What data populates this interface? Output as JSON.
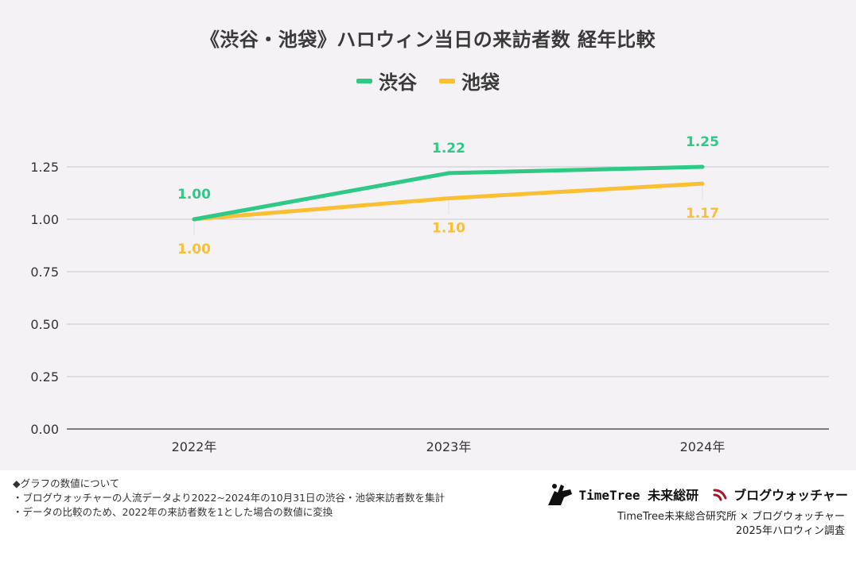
{
  "chart_data": {
    "type": "line",
    "title": "《渋谷・池袋》ハロウィン当日の来訪者数 経年比較",
    "categories": [
      "2022年",
      "2023年",
      "2024年"
    ],
    "series": [
      {
        "name": "渋谷",
        "values": [
          1.0,
          1.22,
          1.25
        ],
        "labels": [
          "1.00",
          "1.22",
          "1.25"
        ],
        "color": "#2ec986"
      },
      {
        "name": "池袋",
        "values": [
          1.0,
          1.1,
          1.17
        ],
        "labels": [
          "1.00",
          "1.10",
          "1.17"
        ],
        "color": "#fbbf33"
      }
    ],
    "ylim": [
      0,
      1.25
    ],
    "yticks": [
      "0.00",
      "0.25",
      "0.50",
      "0.75",
      "1.00",
      "1.25"
    ],
    "legend_position": "top-center",
    "grid": true
  },
  "notes": [
    "◆グラフの数値について",
    "・ブログウォッチャーの人流データより2022~2024年の10月31日の渋谷・池袋来訪者数を集計",
    "・データの比較のため、2022年の来訪者数を1とした場合の数値に変換"
  ],
  "brands": {
    "timetree": "TimeTree 未来総研",
    "blogwatcher": "ブログウォッチャー"
  },
  "credit": {
    "line1": "TimeTree未来総合研究所 × ブログウォッチャー",
    "line2": "2025年ハロウィン調査"
  }
}
